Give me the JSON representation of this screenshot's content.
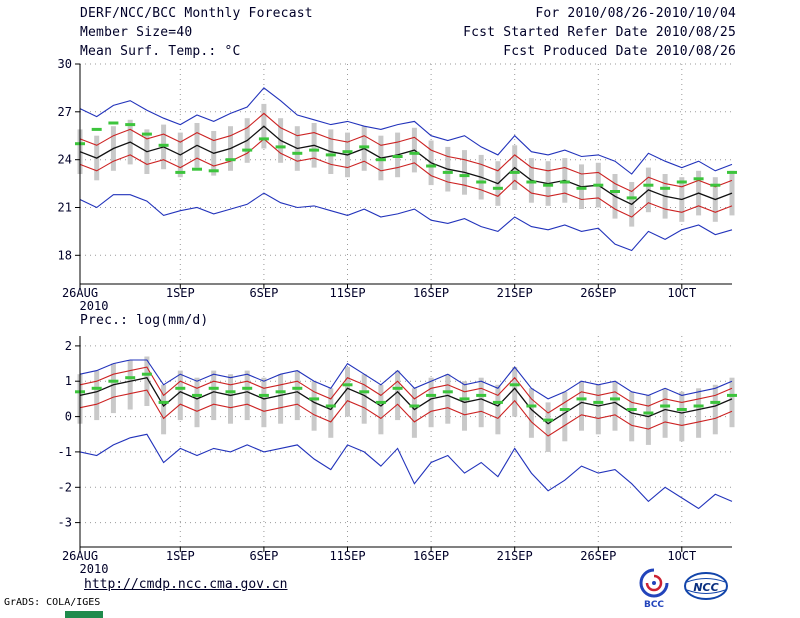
{
  "header": {
    "title": "DERF/NCC/BCC Monthly Forecast",
    "member_size": "Member Size=40",
    "for_range": "For 2010/08/26-2010/10/04",
    "fcst_started": "Fcst Started Refer Date 2010/08/25",
    "fcst_produced": "Fcst Produced Date 2010/08/26"
  },
  "footer": {
    "url": "http://cmdp.ncc.cma.gov.cn",
    "grads_credit": "GrADS: COLA/IGES",
    "logos": [
      {
        "name": "bcc-logo",
        "label": "BCC"
      },
      {
        "name": "ncc-logo",
        "label": "NCC"
      }
    ]
  },
  "colors": {
    "blue": "#2233bb",
    "red": "#cc2222",
    "black": "#111111",
    "green": "#3cc43c",
    "bar": "#c9c9c9",
    "grid": "#9a9a9a",
    "axis": "#000000",
    "text": "#000028"
  },
  "chart_data": [
    {
      "type": "line",
      "title": "Mean Surf. Temp.: °C",
      "xlabel": "",
      "ylabel": "",
      "ylim": [
        16.2,
        30.0
      ],
      "yticks": [
        18,
        21,
        24,
        27,
        30
      ],
      "x_tick_labels": [
        "26AUG",
        "1SEP",
        "6SEP",
        "11SEP",
        "16SEP",
        "21SEP",
        "26SEP",
        "1OCT"
      ],
      "x_tick_index": [
        0,
        6,
        11,
        16,
        21,
        26,
        31,
        36
      ],
      "x_year_label": "2010",
      "grid": true,
      "legend": "none",
      "series": [
        {
          "name": "ensemble-max",
          "color": "blue",
          "values": [
            27.2,
            26.7,
            27.4,
            27.7,
            27.1,
            26.6,
            26.2,
            26.8,
            26.4,
            26.9,
            27.3,
            28.5,
            27.7,
            26.8,
            26.5,
            26.2,
            26.4,
            26.1,
            25.9,
            26.2,
            26.4,
            25.5,
            25.2,
            25.5,
            24.8,
            24.3,
            25.5,
            24.5,
            24.3,
            24.6,
            24.2,
            24.3,
            23.9,
            23.1,
            24.4,
            23.9,
            23.5,
            23.9,
            23.3,
            23.7
          ]
        },
        {
          "name": "ensemble-min",
          "color": "blue",
          "values": [
            21.5,
            21.0,
            21.8,
            21.8,
            21.4,
            20.5,
            20.8,
            21.0,
            20.6,
            20.9,
            21.2,
            21.9,
            21.3,
            21.0,
            21.1,
            20.8,
            20.5,
            20.9,
            20.4,
            20.6,
            20.9,
            20.2,
            20.0,
            20.3,
            19.8,
            19.5,
            20.4,
            19.8,
            19.6,
            19.9,
            19.5,
            19.7,
            18.7,
            18.3,
            19.5,
            19.0,
            19.6,
            19.9,
            19.3,
            19.6
          ]
        },
        {
          "name": "upper-quartile",
          "color": "red",
          "values": [
            25.3,
            24.9,
            25.5,
            25.9,
            25.3,
            25.6,
            25.1,
            25.7,
            25.2,
            25.5,
            26.0,
            26.9,
            26.0,
            25.5,
            25.7,
            25.3,
            25.1,
            25.5,
            24.9,
            25.1,
            25.4,
            24.6,
            24.2,
            24.0,
            23.7,
            23.3,
            24.3,
            23.5,
            23.3,
            23.5,
            23.1,
            23.2,
            22.5,
            22.0,
            22.9,
            22.5,
            22.3,
            22.7,
            22.3,
            22.7
          ]
        },
        {
          "name": "lower-quartile",
          "color": "red",
          "values": [
            23.7,
            23.3,
            23.9,
            24.3,
            23.7,
            24.0,
            23.5,
            24.1,
            23.6,
            23.9,
            24.4,
            25.3,
            24.4,
            23.9,
            24.1,
            23.7,
            23.5,
            23.9,
            23.3,
            23.5,
            23.8,
            23.0,
            22.6,
            22.4,
            22.1,
            21.7,
            22.7,
            21.9,
            21.7,
            21.9,
            21.5,
            21.6,
            20.9,
            20.4,
            21.3,
            20.9,
            20.7,
            21.1,
            20.7,
            21.1
          ]
        },
        {
          "name": "ensemble-mean",
          "color": "black",
          "values": [
            24.5,
            24.1,
            24.7,
            25.1,
            24.5,
            24.8,
            24.3,
            24.9,
            24.4,
            24.7,
            25.2,
            26.1,
            25.2,
            24.7,
            24.9,
            24.5,
            24.3,
            24.7,
            24.1,
            24.3,
            24.6,
            23.8,
            23.4,
            23.2,
            22.9,
            22.5,
            23.5,
            22.7,
            22.5,
            22.7,
            22.3,
            22.4,
            21.7,
            21.2,
            22.1,
            21.7,
            21.5,
            21.9,
            21.5,
            21.9
          ]
        },
        {
          "name": "green-dash-marker",
          "color": "green",
          "style": "dashes",
          "values": [
            25.0,
            25.9,
            26.3,
            26.2,
            25.6,
            24.9,
            23.2,
            23.4,
            23.3,
            24.0,
            24.6,
            25.3,
            24.8,
            24.4,
            24.6,
            24.3,
            24.5,
            24.8,
            24.0,
            24.2,
            24.4,
            23.6,
            23.2,
            23.0,
            22.6,
            22.2,
            23.2,
            22.6,
            22.4,
            22.6,
            22.2,
            22.4,
            22.0,
            21.6,
            22.4,
            22.2,
            22.6,
            22.8,
            22.4,
            23.2
          ]
        }
      ],
      "bars": {
        "low": [
          23.1,
          22.7,
          23.3,
          23.7,
          23.1,
          23.4,
          22.9,
          23.5,
          23.0,
          23.3,
          23.8,
          24.7,
          23.8,
          23.3,
          23.5,
          23.1,
          22.9,
          23.3,
          22.7,
          22.9,
          23.2,
          22.4,
          22.0,
          21.8,
          21.5,
          21.1,
          22.1,
          21.3,
          21.1,
          21.3,
          20.9,
          21.0,
          20.3,
          19.8,
          20.7,
          20.3,
          20.1,
          20.5,
          20.1,
          20.5
        ],
        "high": [
          25.9,
          25.5,
          26.1,
          26.5,
          25.9,
          26.2,
          25.7,
          26.3,
          25.8,
          26.1,
          26.6,
          27.5,
          26.6,
          26.1,
          26.3,
          25.9,
          25.7,
          26.1,
          25.5,
          25.7,
          26.0,
          25.2,
          24.8,
          24.6,
          24.3,
          23.9,
          24.9,
          24.1,
          23.9,
          24.1,
          23.7,
          23.8,
          23.1,
          22.6,
          23.5,
          23.1,
          22.9,
          23.3,
          22.9,
          23.3
        ]
      }
    },
    {
      "type": "line",
      "title": "Prec.: log(mm/d)",
      "xlabel": "",
      "ylabel": "",
      "ylim": [
        -3.69,
        2.28
      ],
      "yticks": [
        -3,
        -2,
        -1,
        0,
        1,
        2
      ],
      "x_tick_labels": [
        "26AUG",
        "1SEP",
        "6SEP",
        "11SEP",
        "16SEP",
        "21SEP",
        "26SEP",
        "1OCT"
      ],
      "x_tick_index": [
        0,
        6,
        11,
        16,
        21,
        26,
        31,
        36
      ],
      "x_year_label": "2010",
      "grid": true,
      "legend": "none",
      "series": [
        {
          "name": "ensemble-max",
          "color": "blue",
          "values": [
            1.2,
            1.3,
            1.5,
            1.6,
            1.6,
            0.9,
            1.2,
            1.0,
            1.2,
            1.1,
            1.2,
            1.0,
            1.2,
            1.3,
            1.0,
            0.8,
            1.5,
            1.2,
            0.9,
            1.3,
            0.8,
            1.0,
            1.2,
            0.9,
            1.0,
            0.8,
            1.4,
            0.8,
            0.5,
            0.7,
            1.0,
            0.9,
            1.0,
            0.7,
            0.6,
            0.8,
            0.6,
            0.7,
            0.8,
            1.0
          ]
        },
        {
          "name": "ensemble-min",
          "color": "blue",
          "values": [
            -1.0,
            -1.1,
            -0.8,
            -0.6,
            -0.5,
            -1.3,
            -0.9,
            -1.1,
            -0.9,
            -1.0,
            -0.8,
            -1.0,
            -0.9,
            -0.8,
            -1.2,
            -1.5,
            -0.8,
            -1.0,
            -1.4,
            -0.9,
            -1.9,
            -1.3,
            -1.1,
            -1.6,
            -1.3,
            -1.7,
            -0.9,
            -1.6,
            -2.1,
            -1.8,
            -1.4,
            -1.6,
            -1.5,
            -1.9,
            -2.4,
            -2.0,
            -2.3,
            -2.6,
            -2.2,
            -2.4
          ]
        },
        {
          "name": "upper-quartile",
          "color": "red",
          "values": [
            0.9,
            1.0,
            1.2,
            1.3,
            1.4,
            0.6,
            1.0,
            0.8,
            1.0,
            0.9,
            1.0,
            0.8,
            0.9,
            1.0,
            0.7,
            0.5,
            1.1,
            0.9,
            0.6,
            1.0,
            0.5,
            0.8,
            0.9,
            0.7,
            0.8,
            0.6,
            1.1,
            0.5,
            0.1,
            0.4,
            0.7,
            0.6,
            0.7,
            0.4,
            0.3,
            0.5,
            0.4,
            0.5,
            0.6,
            0.8
          ]
        },
        {
          "name": "lower-quartile",
          "color": "red",
          "values": [
            0.25,
            0.35,
            0.55,
            0.65,
            0.75,
            -0.05,
            0.35,
            0.15,
            0.35,
            0.25,
            0.35,
            0.15,
            0.25,
            0.35,
            0.05,
            -0.15,
            0.45,
            0.25,
            -0.05,
            0.35,
            -0.15,
            0.15,
            0.25,
            0.05,
            0.15,
            -0.05,
            0.45,
            -0.15,
            -0.55,
            -0.25,
            0.05,
            -0.05,
            0.05,
            -0.25,
            -0.35,
            -0.15,
            -0.25,
            -0.15,
            -0.05,
            0.15
          ]
        },
        {
          "name": "ensemble-mean",
          "color": "black",
          "values": [
            0.6,
            0.7,
            0.9,
            1.0,
            1.1,
            0.3,
            0.7,
            0.5,
            0.7,
            0.6,
            0.7,
            0.5,
            0.6,
            0.7,
            0.4,
            0.2,
            0.8,
            0.6,
            0.3,
            0.7,
            0.2,
            0.5,
            0.6,
            0.4,
            0.5,
            0.3,
            0.8,
            0.2,
            -0.2,
            0.1,
            0.4,
            0.3,
            0.4,
            0.1,
            0.0,
            0.2,
            0.1,
            0.2,
            0.3,
            0.5
          ]
        },
        {
          "name": "green-dash-marker",
          "color": "green",
          "style": "dashes",
          "values": [
            0.7,
            0.8,
            1.0,
            1.1,
            1.2,
            0.4,
            0.8,
            0.6,
            0.8,
            0.7,
            0.8,
            0.6,
            0.7,
            0.8,
            0.5,
            0.3,
            0.9,
            0.7,
            0.4,
            0.8,
            0.3,
            0.6,
            0.7,
            0.5,
            0.6,
            0.4,
            0.9,
            0.3,
            -0.1,
            0.2,
            0.5,
            0.4,
            0.5,
            0.2,
            0.1,
            0.3,
            0.2,
            0.3,
            0.4,
            0.6
          ]
        }
      ],
      "bars": {
        "low": [
          -0.2,
          -0.1,
          0.1,
          0.2,
          0.3,
          -0.5,
          -0.1,
          -0.3,
          -0.1,
          -0.2,
          -0.1,
          -0.3,
          -0.2,
          -0.1,
          -0.4,
          -0.6,
          0.0,
          -0.2,
          -0.5,
          -0.1,
          -0.6,
          -0.3,
          -0.2,
          -0.4,
          -0.3,
          -0.5,
          0.0,
          -0.6,
          -1.0,
          -0.7,
          -0.4,
          -0.5,
          -0.4,
          -0.7,
          -0.8,
          -0.6,
          -0.7,
          -0.6,
          -0.5,
          -0.3
        ],
        "high": [
          1.2,
          1.3,
          1.5,
          1.6,
          1.7,
          0.9,
          1.3,
          1.1,
          1.3,
          1.2,
          1.3,
          1.1,
          1.2,
          1.3,
          1.0,
          0.8,
          1.4,
          1.2,
          0.9,
          1.3,
          0.8,
          1.1,
          1.2,
          1.0,
          1.1,
          0.9,
          1.4,
          0.8,
          0.4,
          0.7,
          1.0,
          0.9,
          1.0,
          0.7,
          0.6,
          0.8,
          0.7,
          0.8,
          0.9,
          1.1
        ]
      }
    }
  ]
}
